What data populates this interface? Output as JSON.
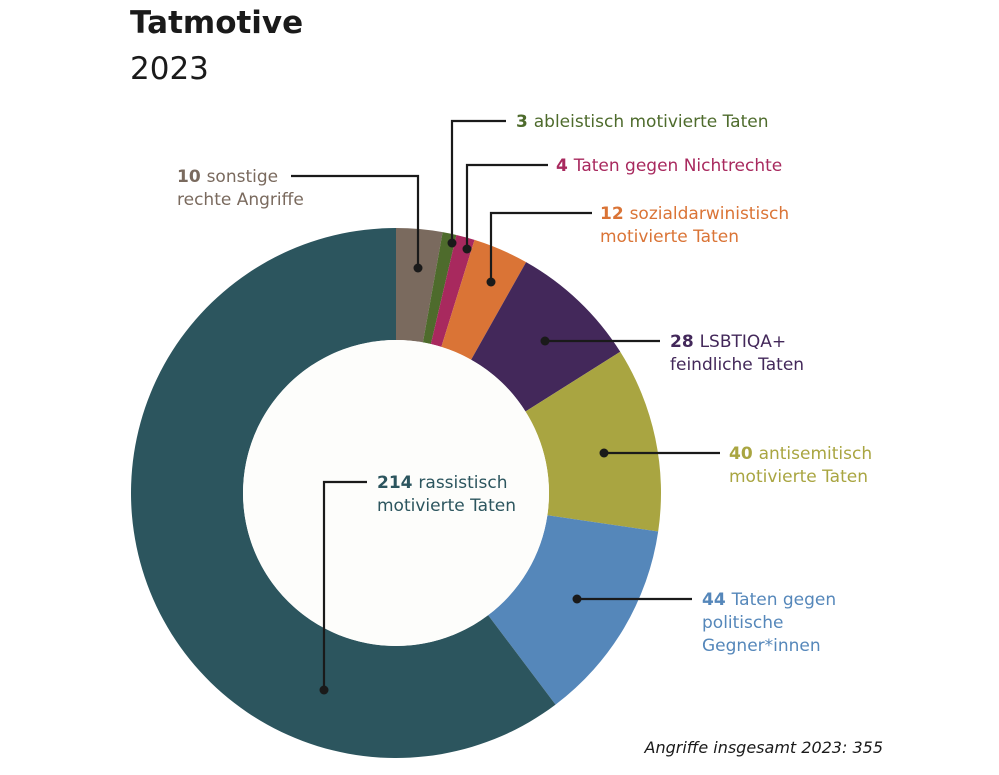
{
  "chart_data": {
    "type": "pie",
    "title": "Tatmotive",
    "subtitle": "2023",
    "total_note": "Angriffe insgesamt 2023: 355",
    "slices": [
      {
        "value": 10,
        "value_label": "10",
        "lines": [
          "sonstige",
          "rechte Angriffe"
        ],
        "color": "#7a6a5e",
        "label_color": "#7a6a5e"
      },
      {
        "value": 3,
        "value_label": "3",
        "lines": [
          "ableistisch motivierte Taten"
        ],
        "color": "#4e6b2c",
        "label_color": "#4e6b2c"
      },
      {
        "value": 4,
        "value_label": "4",
        "lines": [
          "Taten gegen Nichtrechte"
        ],
        "color": "#a8295e",
        "label_color": "#a8295e"
      },
      {
        "value": 12,
        "value_label": "12",
        "lines": [
          "sozialdarwinistisch",
          "motivierte Taten"
        ],
        "color": "#da7436",
        "label_color": "#da7436"
      },
      {
        "value": 28,
        "value_label": "28",
        "lines": [
          "LSBTIQA+",
          "feindliche Taten"
        ],
        "color": "#43285a",
        "label_color": "#43285a"
      },
      {
        "value": 40,
        "value_label": "40",
        "lines": [
          "antisemitisch",
          "motivierte Taten"
        ],
        "color": "#a9a541",
        "label_color": "#a9a541"
      },
      {
        "value": 44,
        "value_label": "44",
        "lines": [
          "Taten gegen",
          "politische",
          "Gegner*innen"
        ],
        "color": "#5587ba",
        "label_color": "#5587ba"
      },
      {
        "value": 214,
        "value_label": "214",
        "lines": [
          "rassistisch",
          "motivierte Taten"
        ],
        "color": "#2c555e",
        "label_color": "#2c555e"
      }
    ]
  }
}
